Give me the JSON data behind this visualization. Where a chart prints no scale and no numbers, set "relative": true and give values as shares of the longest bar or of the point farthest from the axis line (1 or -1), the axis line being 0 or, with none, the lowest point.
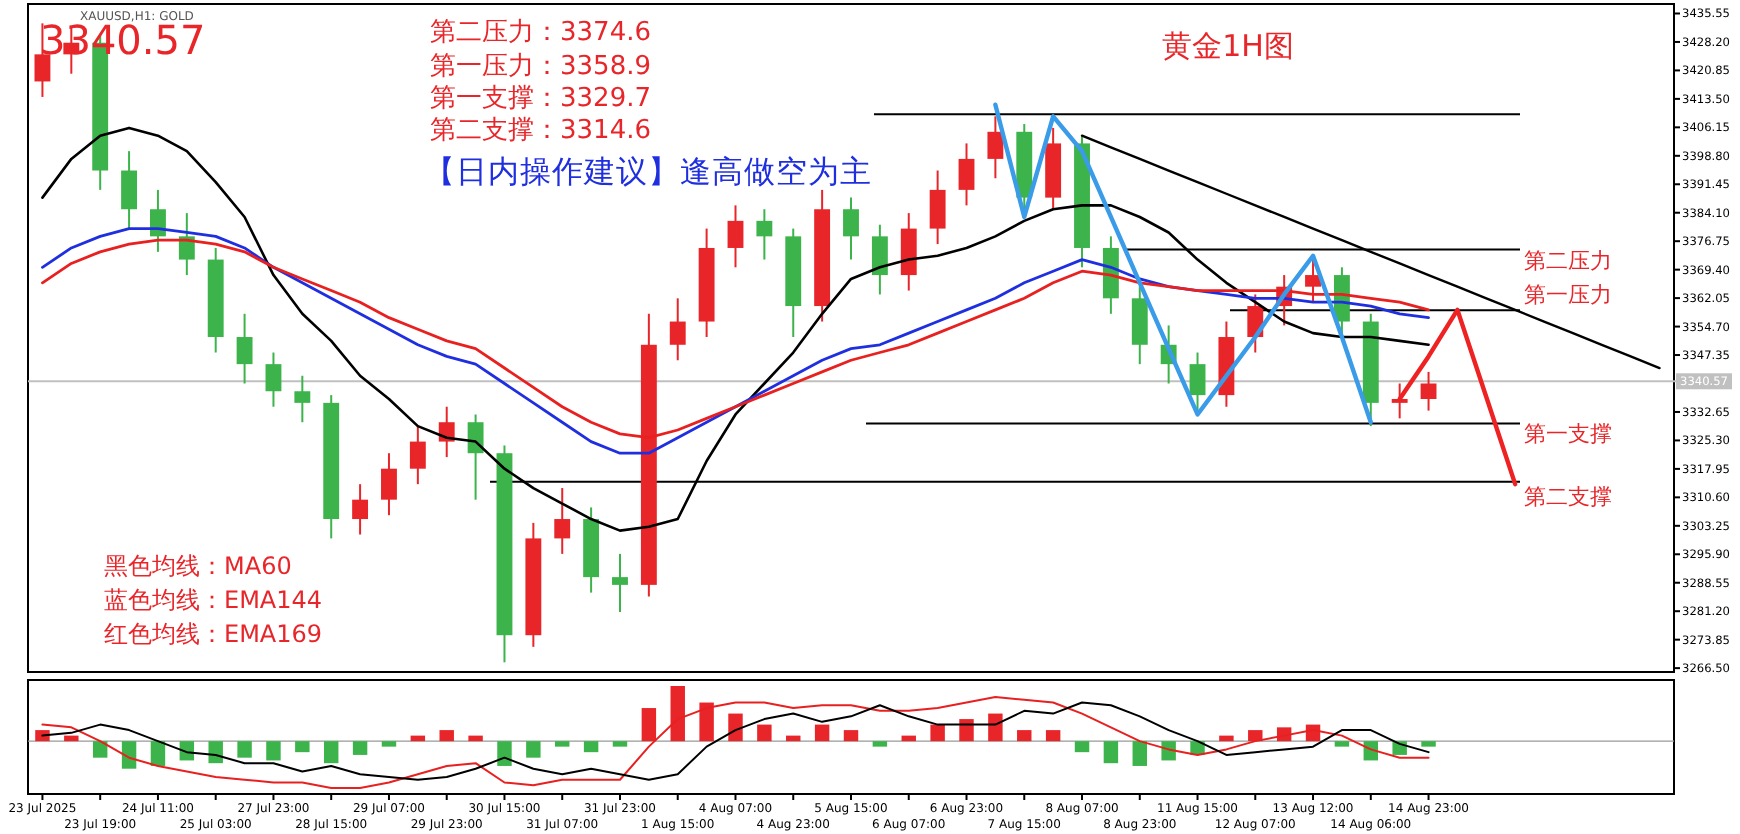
{
  "chart_data": [
    {
      "type": "candlestick",
      "title": "黄金1H图",
      "tick_labels": "y",
      "grid": false,
      "categories": [
        null,
        null,
        null,
        null,
        null,
        null,
        null,
        null,
        null,
        null,
        null,
        null,
        null,
        null,
        null,
        null,
        null,
        null,
        null,
        null,
        null,
        null,
        null,
        null,
        null,
        null,
        null,
        null,
        null,
        null,
        null,
        null,
        null,
        null,
        null,
        null,
        null,
        null,
        null,
        null,
        null,
        null,
        null,
        null,
        null,
        null,
        null,
        null,
        null,
        null,
        null,
        null,
        null,
        null,
        null,
        null,
        null
      ],
      "ohlc": [
        [
          3418,
          3433,
          3414,
          3425
        ],
        [
          3425,
          3432,
          3420,
          3428
        ],
        [
          3428,
          3430,
          3390,
          3395
        ],
        [
          3395,
          3400,
          3380,
          3385
        ],
        [
          3385,
          3390,
          3374,
          3378
        ],
        [
          3378,
          3384,
          3368,
          3372
        ],
        [
          3372,
          3375,
          3348,
          3352
        ],
        [
          3352,
          3358,
          3340,
          3345
        ],
        [
          3345,
          3348,
          3334,
          3338
        ],
        [
          3338,
          3342,
          3330,
          3335
        ],
        [
          3335,
          3337,
          3300,
          3305
        ],
        [
          3305,
          3314,
          3301,
          3310
        ],
        [
          3310,
          3322,
          3306,
          3318
        ],
        [
          3318,
          3329,
          3314,
          3325
        ],
        [
          3325,
          3334,
          3321,
          3330
        ],
        [
          3330,
          3332,
          3310,
          3322
        ],
        [
          3322,
          3324,
          3268,
          3275
        ],
        [
          3275,
          3304,
          3272,
          3300
        ],
        [
          3300,
          3313,
          3296,
          3305
        ],
        [
          3305,
          3308,
          3286,
          3290
        ],
        [
          3290,
          3296,
          3281,
          3288
        ],
        [
          3288,
          3358,
          3285,
          3350
        ],
        [
          3350,
          3362,
          3346,
          3356
        ],
        [
          3356,
          3380,
          3352,
          3375
        ],
        [
          3375,
          3386,
          3370,
          3382
        ],
        [
          3382,
          3385,
          3372,
          3378
        ],
        [
          3378,
          3380,
          3352,
          3360
        ],
        [
          3360,
          3390,
          3356,
          3385
        ],
        [
          3385,
          3388,
          3372,
          3378
        ],
        [
          3378,
          3381,
          3363,
          3368
        ],
        [
          3368,
          3384,
          3364,
          3380
        ],
        [
          3380,
          3395,
          3376,
          3390
        ],
        [
          3390,
          3402,
          3386,
          3398
        ],
        [
          3398,
          3409,
          3393,
          3405
        ],
        [
          3405,
          3407,
          3384,
          3388
        ],
        [
          3388,
          3406,
          3385,
          3402
        ],
        [
          3402,
          3404,
          3370,
          3375
        ],
        [
          3375,
          3378,
          3358,
          3362
        ],
        [
          3362,
          3365,
          3345,
          3350
        ],
        [
          3350,
          3355,
          3340,
          3345
        ],
        [
          3345,
          3348,
          3333,
          3337
        ],
        [
          3337,
          3356,
          3334,
          3352
        ],
        [
          3352,
          3363,
          3348,
          3360
        ],
        [
          3360,
          3368,
          3355,
          3365
        ],
        [
          3365,
          3373,
          3361,
          3368
        ],
        [
          3368,
          3370,
          3352,
          3356
        ],
        [
          3356,
          3358,
          3329,
          3335
        ],
        [
          3335,
          3340,
          3331,
          3336
        ],
        [
          3336,
          3343,
          3333,
          3340
        ],
        null,
        null,
        null,
        null,
        null,
        null,
        null,
        null
      ],
      "series": [
        {
          "type": "line",
          "color": "#000000",
          "values": [
            3388,
            3398,
            3404,
            3406,
            3404,
            3400,
            3392,
            3383,
            3368,
            3358,
            3351,
            3342,
            3336,
            3329,
            3326,
            3325,
            3318,
            3313,
            3309,
            3305,
            3302,
            3303,
            3305,
            3320,
            3332,
            3340,
            3348,
            3358,
            3367,
            3370,
            3372,
            3373,
            3375,
            3378,
            3382,
            3385,
            3386,
            3386,
            3383,
            3379,
            3372,
            3366,
            3361,
            3356,
            3353,
            3352,
            3352,
            3351,
            3350,
            null,
            null,
            null,
            null,
            null,
            null,
            null,
            null
          ]
        },
        {
          "type": "line",
          "color": "#1f2fe0",
          "values": [
            3370,
            3375,
            3378,
            3380,
            3380,
            3379,
            3378,
            3375,
            3370,
            3366,
            3362,
            3358,
            3354,
            3350,
            3347,
            3345,
            3340,
            3335,
            3330,
            3325,
            3322,
            3322,
            3326,
            3330,
            3334,
            3338,
            3342,
            3346,
            3349,
            3350,
            3353,
            3356,
            3359,
            3362,
            3366,
            3369,
            3372,
            3370,
            3367,
            3365,
            3364,
            3363,
            3362,
            3362,
            3361,
            3361,
            3360,
            3358,
            3357,
            null,
            null,
            null,
            null,
            null,
            null,
            null,
            null
          ]
        },
        {
          "type": "line",
          "color": "#e82020",
          "values": [
            3366,
            3371,
            3374,
            3376,
            3377,
            3377,
            3376,
            3374,
            3370,
            3367,
            3364,
            3361,
            3357,
            3354,
            3351,
            3349,
            3344,
            3339,
            3334,
            3330,
            3327,
            3326,
            3328,
            3331,
            3334,
            3337,
            3340,
            3343,
            3346,
            3348,
            3350,
            3353,
            3356,
            3359,
            3362,
            3366,
            3369,
            3368,
            3366,
            3365,
            3364,
            3364,
            3364,
            3364,
            3363,
            3363,
            3362,
            3361,
            3359,
            null,
            null,
            null,
            null,
            null,
            null,
            null,
            null
          ]
        },
        {
          "type": "line",
          "color": "#000000",
          "values": [
            null,
            null,
            null,
            null,
            null,
            null,
            null,
            null,
            null,
            null,
            null,
            null,
            null,
            null,
            null,
            null,
            null,
            null,
            null,
            null,
            null,
            null,
            null,
            null,
            null,
            null,
            null,
            null,
            null,
            null,
            null,
            null,
            null,
            null,
            null,
            null,
            3404,
            3401,
            3398,
            3395,
            3392,
            3389,
            3386,
            3383,
            3380,
            3377,
            3374,
            3371,
            3368,
            3365,
            3362,
            3359,
            3356,
            3353,
            3350,
            3347,
            3344
          ]
        },
        {
          "type": "line",
          "color": "#3a9be8",
          "values": [
            null,
            null,
            null,
            null,
            null,
            null,
            null,
            null,
            null,
            null,
            null,
            null,
            null,
            null,
            null,
            null,
            null,
            null,
            null,
            null,
            null,
            null,
            null,
            null,
            null,
            null,
            null,
            null,
            null,
            null,
            null,
            null,
            null,
            3412,
            3383,
            3409,
            3400,
            3383,
            3366,
            3349,
            3332,
            3342,
            3352,
            3363,
            3373,
            3352,
            3330,
            null,
            null,
            null,
            null,
            null,
            null,
            null,
            null,
            null,
            null
          ]
        },
        {
          "type": "line",
          "color": "#ee2222",
          "values": [
            null,
            null,
            null,
            null,
            null,
            null,
            null,
            null,
            null,
            null,
            null,
            null,
            null,
            null,
            null,
            null,
            null,
            null,
            null,
            null,
            null,
            null,
            null,
            null,
            null,
            null,
            null,
            null,
            null,
            null,
            null,
            null,
            null,
            null,
            null,
            null,
            null,
            null,
            null,
            null,
            null,
            null,
            null,
            null,
            null,
            null,
            null,
            3336,
            3347,
            3359,
            3336.5,
            3314,
            null,
            null,
            null,
            null,
            null
          ]
        }
      ],
      "ylim": [
        3265.5,
        3438
      ],
      "yticks": [
        {
          "value": 3435.55,
          "label": "3435.55"
        },
        {
          "value": 3428.2,
          "label": "3428.20"
        },
        {
          "value": 3420.85,
          "label": "3420.85"
        },
        {
          "value": 3413.5,
          "label": "3413.50"
        },
        {
          "value": 3406.15,
          "label": "3406.15"
        },
        {
          "value": 3398.8,
          "label": "3398.80"
        },
        {
          "value": 3391.45,
          "label": "3391.45"
        },
        {
          "value": 3384.1,
          "label": "3384.10"
        },
        {
          "value": 3376.75,
          "label": "3376.75"
        },
        {
          "value": 3369.4,
          "label": "3369.40"
        },
        {
          "value": 3362.05,
          "label": "3362.05"
        },
        {
          "value": 3354.7,
          "label": "3354.70"
        },
        {
          "value": 3347.35,
          "label": "3347.35"
        },
        {
          "value": 3332.65,
          "label": "3332.65"
        },
        {
          "value": 3325.3,
          "label": "3325.30"
        },
        {
          "value": 3317.95,
          "label": "3317.95"
        },
        {
          "value": 3310.6,
          "label": "3310.60"
        },
        {
          "value": 3303.25,
          "label": "3303.25"
        },
        {
          "value": 3295.9,
          "label": "3295.90"
        },
        {
          "value": 3288.55,
          "label": "3288.55"
        },
        {
          "value": 3281.2,
          "label": "3281.20"
        },
        {
          "value": 3273.85,
          "label": "3273.85"
        },
        {
          "value": 3266.5,
          "label": "3266.50"
        }
      ],
      "ref_lines": [
        {
          "axis": "y",
          "value": 3409.5,
          "color": "#000000"
        },
        {
          "axis": "y",
          "value": 3374.6,
          "label": "第二压力",
          "color": "#000000"
        },
        {
          "axis": "y",
          "value": 3358.9,
          "label": "第一压力",
          "color": "#000000"
        },
        {
          "axis": "y",
          "value": 3329.7,
          "label": "第一支撑",
          "color": "#000000"
        },
        {
          "axis": "y",
          "value": 3314.6,
          "label": "第二支撑",
          "color": "#000000"
        },
        {
          "axis": "y",
          "value": 3340.57,
          "label": "3340.57",
          "color": "#c0c0c0"
        }
      ],
      "annotations": [
        "XAUUSD,H1: GOLD",
        "3340.57",
        "第二压力：3374.6",
        "第一压力：3358.9",
        "第一支撑：3329.7",
        "第二支撑：3314.6",
        "【日内操作建议】逢高做空为主",
        "黑色均线：MA60",
        "蓝色均线：EMA144",
        "红色均线：EMA169"
      ]
    },
    {
      "type": "bar",
      "relative": true,
      "grid": false,
      "categories": [
        "23 Jul 2025",
        null,
        "23 Jul 19:00",
        null,
        "24 Jul 11:00",
        null,
        "25 Jul 03:00",
        null,
        "27 Jul 23:00",
        null,
        "28 Jul 15:00",
        null,
        "29 Jul 07:00",
        null,
        "29 Jul 23:00",
        null,
        "30 Jul 15:00",
        null,
        "31 Jul 07:00",
        null,
        "31 Jul 23:00",
        null,
        "1 Aug 15:00",
        null,
        "4 Aug 07:00",
        null,
        "4 Aug 23:00",
        null,
        "5 Aug 15:00",
        null,
        "6 Aug 07:00",
        null,
        "6 Aug 23:00",
        null,
        "7 Aug 15:00",
        null,
        "8 Aug 07:00",
        null,
        "8 Aug 23:00",
        null,
        "11 Aug 15:00",
        null,
        "12 Aug 07:00",
        null,
        "13 Aug 12:00",
        null,
        "14 Aug 06:00",
        null,
        "14 Aug 23:00",
        null,
        null,
        null,
        null,
        null,
        null,
        null,
        null
      ],
      "values": [
        0.2,
        0.1,
        -0.3,
        -0.5,
        -0.45,
        -0.35,
        -0.4,
        -0.3,
        -0.35,
        -0.2,
        -0.4,
        -0.25,
        -0.1,
        0.1,
        0.2,
        0.1,
        -0.45,
        -0.3,
        -0.1,
        -0.2,
        -0.1,
        0.6,
        1.0,
        0.7,
        0.5,
        0.3,
        0.1,
        0.3,
        0.2,
        -0.1,
        0.1,
        0.3,
        0.4,
        0.5,
        0.2,
        0.2,
        -0.2,
        -0.4,
        -0.45,
        -0.35,
        -0.25,
        0.1,
        0.2,
        0.25,
        0.3,
        -0.1,
        -0.35,
        -0.25,
        -0.1,
        null,
        null,
        null,
        null,
        null,
        null,
        null,
        null
      ],
      "colors": [
        "#e8262a",
        "#e8262a",
        "#3cb44b",
        "#3cb44b",
        "#3cb44b",
        "#3cb44b",
        "#3cb44b",
        "#3cb44b",
        "#3cb44b",
        "#3cb44b",
        "#3cb44b",
        "#3cb44b",
        "#3cb44b",
        "#e8262a",
        "#e8262a",
        "#e8262a",
        "#3cb44b",
        "#3cb44b",
        "#3cb44b",
        "#3cb44b",
        "#3cb44b",
        "#e8262a",
        "#e8262a",
        "#e8262a",
        "#e8262a",
        "#e8262a",
        "#e8262a",
        "#e8262a",
        "#e8262a",
        "#3cb44b",
        "#e8262a",
        "#e8262a",
        "#e8262a",
        "#e8262a",
        "#e8262a",
        "#e8262a",
        "#3cb44b",
        "#3cb44b",
        "#3cb44b",
        "#3cb44b",
        "#3cb44b",
        "#e8262a",
        "#e8262a",
        "#e8262a",
        "#e8262a",
        "#3cb44b",
        "#3cb44b",
        "#3cb44b",
        "#3cb44b",
        null,
        null,
        null,
        null,
        null,
        null,
        null,
        null
      ],
      "series": [
        {
          "type": "line",
          "color": "#e82020",
          "values": [
            0.3,
            0.25,
            0.0,
            -0.3,
            -0.45,
            -0.55,
            -0.65,
            -0.7,
            -0.75,
            -0.75,
            -0.85,
            -0.85,
            -0.75,
            -0.6,
            -0.45,
            -0.4,
            -0.75,
            -0.8,
            -0.7,
            -0.7,
            -0.7,
            -0.1,
            0.4,
            0.6,
            0.7,
            0.7,
            0.6,
            0.65,
            0.65,
            0.55,
            0.55,
            0.6,
            0.7,
            0.8,
            0.75,
            0.7,
            0.5,
            0.25,
            0.0,
            -0.15,
            -0.25,
            -0.15,
            0.0,
            0.1,
            0.2,
            0.1,
            -0.15,
            -0.3,
            -0.3,
            null,
            null,
            null,
            null,
            null,
            null,
            null,
            null
          ]
        },
        {
          "type": "line",
          "color": "#000000",
          "values": [
            0.1,
            0.15,
            0.3,
            0.2,
            0.0,
            -0.2,
            -0.25,
            -0.4,
            -0.4,
            -0.55,
            -0.45,
            -0.6,
            -0.65,
            -0.7,
            -0.65,
            -0.5,
            -0.3,
            -0.5,
            -0.6,
            -0.5,
            -0.6,
            -0.7,
            -0.6,
            -0.1,
            0.2,
            0.4,
            0.5,
            0.35,
            0.45,
            0.65,
            0.45,
            0.3,
            0.3,
            0.3,
            0.55,
            0.5,
            0.7,
            0.65,
            0.45,
            0.2,
            0.0,
            -0.25,
            -0.2,
            -0.15,
            -0.1,
            0.2,
            0.2,
            -0.05,
            -0.2,
            null,
            null,
            null,
            null,
            null,
            null,
            null,
            null
          ]
        }
      ]
    }
  ]
}
